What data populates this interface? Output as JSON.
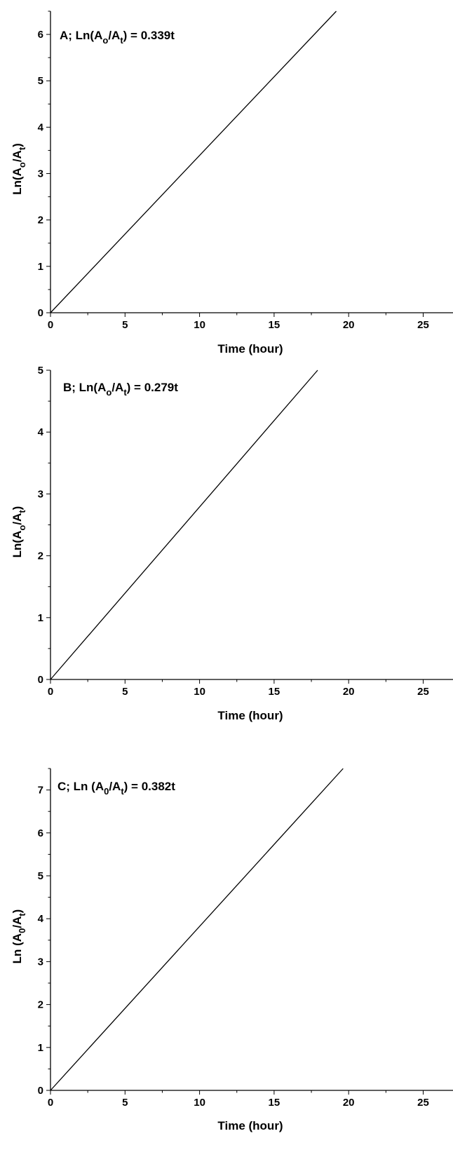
{
  "chart_data": [
    {
      "type": "line",
      "panel": "A",
      "annotation": {
        "pre": "A; Ln(A",
        "sub1": "o",
        "mid": "/A",
        "sub2": "t",
        "post": ") = 0.339t"
      },
      "xlabel": "Time (hour)",
      "ylabel": {
        "pre": "Ln(A",
        "sub1": "o",
        "mid": "/A",
        "sub2": "t",
        "post": ")"
      },
      "xlim": [
        0,
        27
      ],
      "ylim": [
        0,
        6.5
      ],
      "xticks": [
        0,
        5,
        10,
        15,
        20,
        25
      ],
      "yticks": [
        0,
        1,
        2,
        3,
        4,
        5,
        6
      ],
      "x": [
        0,
        19.17
      ],
      "y": [
        0,
        6.5
      ],
      "slope": 0.339
    },
    {
      "type": "line",
      "panel": "B",
      "annotation": {
        "pre": "B; Ln(A",
        "sub1": "o",
        "mid": "/A",
        "sub2": "t",
        "post": ") = 0.279t"
      },
      "xlabel": "Time (hour)",
      "ylabel": {
        "pre": "Ln(A",
        "sub1": "o",
        "mid": "/A",
        "sub2": "t",
        "post": ")"
      },
      "xlim": [
        0,
        27
      ],
      "ylim": [
        0,
        5
      ],
      "xticks": [
        0,
        5,
        10,
        15,
        20,
        25
      ],
      "yticks": [
        0,
        1,
        2,
        3,
        4,
        5
      ],
      "x": [
        0,
        17.92
      ],
      "y": [
        0,
        5
      ],
      "slope": 0.279
    },
    {
      "type": "line",
      "panel": "C",
      "annotation": {
        "pre": "C; Ln (A",
        "sub1": "0",
        "mid": "/A",
        "sub2": "t",
        "post": ") = 0.382t"
      },
      "xlabel": "Time (hour)",
      "ylabel": {
        "pre": "Ln (A",
        "sub1": "0",
        "mid": "/A",
        "sub2": "t",
        "post": ")"
      },
      "xlim": [
        0,
        27
      ],
      "ylim": [
        0,
        7.5
      ],
      "xticks": [
        0,
        5,
        10,
        15,
        20,
        25
      ],
      "yticks": [
        0,
        1,
        2,
        3,
        4,
        5,
        6,
        7
      ],
      "x": [
        0,
        19.63
      ],
      "y": [
        0,
        7.5
      ],
      "slope": 0.382
    }
  ]
}
